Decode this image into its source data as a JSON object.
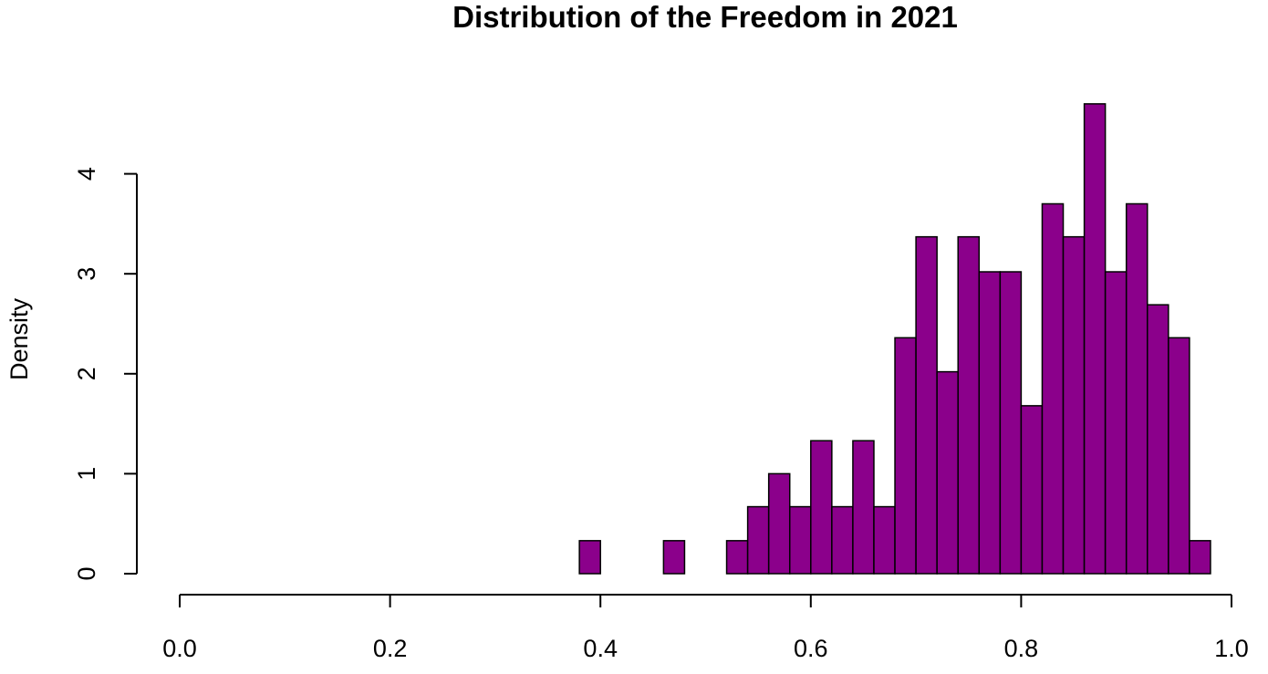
{
  "chart_data": {
    "type": "bar",
    "title": "Distribution of the Freedom in 2021",
    "xlabel": "",
    "ylabel": "Density",
    "bar_color": "#8B008B",
    "xlim": [
      0,
      1
    ],
    "ylim": [
      0,
      4
    ],
    "x_ticks": [
      "0.0",
      "0.2",
      "0.4",
      "0.6",
      "0.8",
      "1.0"
    ],
    "y_ticks": [
      "0",
      "1",
      "2",
      "3",
      "4"
    ],
    "bin_width": 0.02,
    "bins": [
      {
        "x0": 0.38,
        "x1": 0.4,
        "density": 0.33
      },
      {
        "x0": 0.4,
        "x1": 0.42,
        "density": 0
      },
      {
        "x0": 0.42,
        "x1": 0.44,
        "density": 0
      },
      {
        "x0": 0.44,
        "x1": 0.46,
        "density": 0
      },
      {
        "x0": 0.46,
        "x1": 0.48,
        "density": 0.33
      },
      {
        "x0": 0.48,
        "x1": 0.5,
        "density": 0
      },
      {
        "x0": 0.5,
        "x1": 0.52,
        "density": 0
      },
      {
        "x0": 0.52,
        "x1": 0.54,
        "density": 0.33
      },
      {
        "x0": 0.54,
        "x1": 0.56,
        "density": 0.67
      },
      {
        "x0": 0.56,
        "x1": 0.58,
        "density": 1.0
      },
      {
        "x0": 0.58,
        "x1": 0.6,
        "density": 0.67
      },
      {
        "x0": 0.6,
        "x1": 0.62,
        "density": 1.33
      },
      {
        "x0": 0.62,
        "x1": 0.64,
        "density": 0.67
      },
      {
        "x0": 0.64,
        "x1": 0.66,
        "density": 1.33
      },
      {
        "x0": 0.66,
        "x1": 0.68,
        "density": 0.67
      },
      {
        "x0": 0.68,
        "x1": 0.7,
        "density": 2.36
      },
      {
        "x0": 0.7,
        "x1": 0.72,
        "density": 3.37
      },
      {
        "x0": 0.72,
        "x1": 0.74,
        "density": 2.02
      },
      {
        "x0": 0.74,
        "x1": 0.76,
        "density": 3.37
      },
      {
        "x0": 0.76,
        "x1": 0.78,
        "density": 3.02
      },
      {
        "x0": 0.78,
        "x1": 0.8,
        "density": 3.02
      },
      {
        "x0": 0.8,
        "x1": 0.82,
        "density": 1.68
      },
      {
        "x0": 0.82,
        "x1": 0.84,
        "density": 3.7
      },
      {
        "x0": 0.84,
        "x1": 0.86,
        "density": 3.37
      },
      {
        "x0": 0.86,
        "x1": 0.88,
        "density": 4.7
      },
      {
        "x0": 0.88,
        "x1": 0.9,
        "density": 3.02
      },
      {
        "x0": 0.9,
        "x1": 0.92,
        "density": 3.7
      },
      {
        "x0": 0.92,
        "x1": 0.94,
        "density": 2.69
      },
      {
        "x0": 0.94,
        "x1": 0.96,
        "density": 2.36
      },
      {
        "x0": 0.96,
        "x1": 0.98,
        "density": 0.33
      }
    ]
  }
}
